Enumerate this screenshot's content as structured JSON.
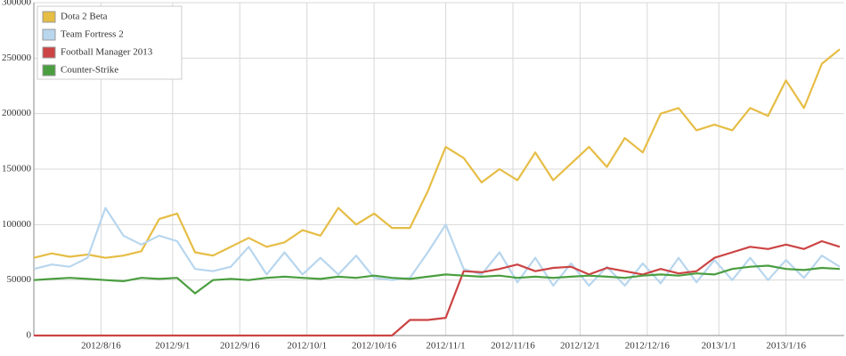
{
  "chart_data": {
    "type": "line",
    "x": [
      "2012/8/1",
      "2012/8/5",
      "2012/8/9",
      "2012/8/13",
      "2012/8/17",
      "2012/8/21",
      "2012/8/25",
      "2012/8/29",
      "2012/9/2",
      "2012/9/6",
      "2012/9/10",
      "2012/9/14",
      "2012/9/18",
      "2012/9/22",
      "2012/9/26",
      "2012/9/30",
      "2012/10/4",
      "2012/10/8",
      "2012/10/12",
      "2012/10/16",
      "2012/10/20",
      "2012/10/24",
      "2012/10/28",
      "2012/11/1",
      "2012/11/5",
      "2012/11/9",
      "2012/11/13",
      "2012/11/17",
      "2012/11/21",
      "2012/11/25",
      "2012/11/29",
      "2012/12/3",
      "2012/12/7",
      "2012/12/11",
      "2012/12/15",
      "2012/12/19",
      "2012/12/23",
      "2012/12/27",
      "2012/12/31",
      "2013/1/4",
      "2013/1/8",
      "2013/1/12",
      "2013/1/16",
      "2013/1/20",
      "2013/1/24",
      "2013/1/28"
    ],
    "series": [
      {
        "name": "Dota 2 Beta",
        "color": "#e6bd45",
        "values": [
          70000,
          74000,
          71000,
          73000,
          70000,
          72000,
          76000,
          105000,
          110000,
          75000,
          72000,
          80000,
          88000,
          80000,
          84000,
          95000,
          90000,
          115000,
          100000,
          110000,
          97000,
          97000,
          130000,
          170000,
          160000,
          138000,
          150000,
          140000,
          165000,
          140000,
          155000,
          170000,
          152000,
          178000,
          165000,
          200000,
          205000,
          185000,
          190000,
          185000,
          205000,
          198000,
          230000,
          205000,
          245000,
          258000
        ]
      },
      {
        "name": "Team Fortress 2",
        "color": "#b8d6ee",
        "values": [
          60000,
          64000,
          62000,
          70000,
          115000,
          90000,
          82000,
          90000,
          85000,
          60000,
          58000,
          62000,
          80000,
          55000,
          75000,
          55000,
          70000,
          55000,
          72000,
          52000,
          50000,
          52000,
          75000,
          100000,
          60000,
          55000,
          75000,
          48000,
          70000,
          45000,
          65000,
          45000,
          62000,
          45000,
          65000,
          47000,
          70000,
          48000,
          68000,
          50000,
          70000,
          50000,
          68000,
          52000,
          72000,
          62000
        ]
      },
      {
        "name": "Football Manager 2013",
        "color": "#cc4444",
        "values": [
          0,
          0,
          0,
          0,
          0,
          0,
          0,
          0,
          0,
          0,
          0,
          0,
          0,
          0,
          0,
          0,
          0,
          0,
          0,
          0,
          0,
          14000,
          14000,
          16000,
          58000,
          57000,
          60000,
          64000,
          58000,
          61000,
          62000,
          55000,
          61000,
          58000,
          55000,
          60000,
          56000,
          58000,
          70000,
          75000,
          80000,
          78000,
          82000,
          78000,
          85000,
          80000
        ]
      },
      {
        "name": "Counter-Strike",
        "color": "#4a9e3f",
        "values": [
          50000,
          51000,
          52000,
          51000,
          50000,
          49000,
          52000,
          51000,
          52000,
          38000,
          50000,
          51000,
          50000,
          52000,
          53000,
          52000,
          51000,
          53000,
          52000,
          54000,
          52000,
          51000,
          53000,
          55000,
          54000,
          53000,
          54000,
          52000,
          53000,
          52000,
          53000,
          54000,
          53000,
          52000,
          54000,
          55000,
          54000,
          56000,
          55000,
          60000,
          62000,
          63000,
          60000,
          59000,
          61000,
          60000
        ]
      }
    ],
    "xlim": [
      "2012/8/1",
      "2013/1/29"
    ],
    "xticks": [
      "2012/8/16",
      "2012/9/1",
      "2012/9/16",
      "2012/10/1",
      "2012/10/16",
      "2012/11/1",
      "2012/11/16",
      "2012/12/1",
      "2012/12/16",
      "2013/1/1",
      "2013/1/16"
    ],
    "ylim": [
      0,
      300000
    ],
    "yticks": [
      0,
      50000,
      100000,
      150000,
      200000,
      250000,
      300000
    ],
    "grid": true,
    "legend": "top-left"
  }
}
